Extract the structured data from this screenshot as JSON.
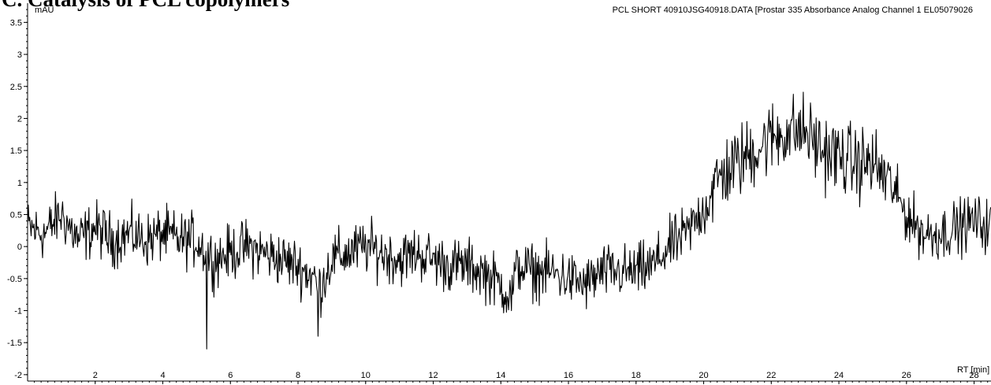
{
  "header": {
    "heading": "C. Catalysis of PCL copolymers"
  },
  "chart_data": {
    "type": "line",
    "title": "PCL SHORT 40910JSG40918.DATA [Prostar 335 Absorbance Analog Channel 1 EL05079026",
    "ylabel": "mAU",
    "xlabel": "RT [min]",
    "xlim": [
      0,
      28.5
    ],
    "ylim": [
      -2.1,
      3.8
    ],
    "x_ticks": [
      2,
      4,
      6,
      8,
      10,
      12,
      14,
      16,
      18,
      20,
      22,
      24,
      26,
      28
    ],
    "y_ticks": [
      -2,
      -1.5,
      -1,
      -0.5,
      0,
      0.5,
      1,
      1.5,
      2,
      2.5,
      3,
      3.5
    ],
    "x_tick_labels": [
      "2",
      "4",
      "6",
      "8",
      "10",
      "12",
      "14",
      "16",
      "18",
      "20",
      "22",
      "24",
      "26",
      "28"
    ],
    "y_tick_labels": [
      "-2",
      "-1.5",
      "-1",
      "-0.5",
      "0",
      "0.5",
      "1",
      "1.5",
      "2",
      "2.5",
      "3",
      "3.5"
    ],
    "series": [
      {
        "x": [
          0,
          0.5,
          1.0,
          1.5,
          2.0,
          2.5,
          3.0,
          3.5,
          4.0,
          4.5,
          5.0,
          5.3,
          5.5,
          6.0,
          6.5,
          7.0,
          7.5,
          8.0,
          8.5,
          8.6,
          9.0,
          9.5,
          10.0,
          10.5,
          11.0,
          11.5,
          12.0,
          12.5,
          13.0,
          13.5,
          14.0,
          14.3,
          14.5,
          15.0,
          15.5,
          16.0,
          16.5,
          17.0,
          17.5,
          18.0,
          18.5,
          19.0,
          19.5,
          20.0,
          20.5,
          21.0,
          21.5,
          22.0,
          22.5,
          23.0,
          23.5,
          24.0,
          24.5,
          25.0,
          25.5,
          26.0,
          26.5,
          27.0,
          27.5,
          28.0,
          28.5
        ],
        "y": [
          0.3,
          0.2,
          0.5,
          0.1,
          0.3,
          0.1,
          0.2,
          0.1,
          0.2,
          0.1,
          0.1,
          -0.1,
          -0.2,
          -0.1,
          0.0,
          -0.1,
          -0.2,
          -0.3,
          -0.5,
          -0.7,
          -0.2,
          -0.1,
          0.0,
          -0.1,
          -0.2,
          -0.1,
          -0.2,
          -0.3,
          -0.3,
          -0.4,
          -0.6,
          -0.8,
          -0.3,
          -0.4,
          -0.4,
          -0.5,
          -0.6,
          -0.4,
          -0.4,
          -0.4,
          -0.3,
          0.0,
          0.2,
          0.6,
          1.1,
          1.3,
          1.5,
          1.7,
          1.8,
          1.8,
          1.5,
          1.4,
          1.3,
          1.3,
          1.0,
          0.5,
          0.2,
          0.2,
          0.3,
          0.4,
          0.3
        ]
      }
    ],
    "annotations": [
      {
        "x": 5.3,
        "y": -1.6
      },
      {
        "x": 8.6,
        "y": -1.4
      }
    ],
    "grid": false,
    "line_color": "#000000",
    "background": "#ffffff"
  }
}
